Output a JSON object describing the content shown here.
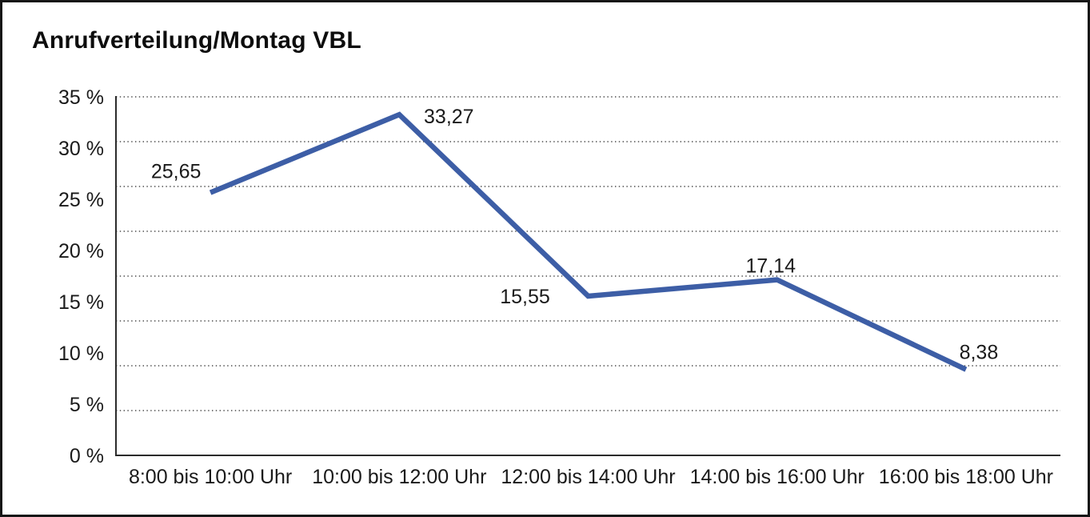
{
  "chart_data": {
    "type": "line",
    "title": "Anrufverteilung/Montag VBL",
    "categories": [
      "8:00 bis 10:00 Uhr",
      "10:00 bis 12:00 Uhr",
      "12:00 bis 14:00 Uhr",
      "14:00 bis 16:00 Uhr",
      "16:00 bis 18:00 Uhr"
    ],
    "series": [
      {
        "name": "Anrufverteilung Montag VBL",
        "values": [
          25.65,
          33.27,
          15.55,
          17.14,
          8.38
        ],
        "point_labels": [
          "25,65",
          "33,27",
          "15,55",
          "17,14",
          "8,38"
        ]
      }
    ],
    "xlabel": "",
    "ylabel": "",
    "y_tick_labels": [
      "35 %",
      "30 %",
      "25 %",
      "20 %",
      "15 %",
      "10 %",
      "5 %",
      "0 %"
    ],
    "ylim": [
      0,
      35
    ],
    "grid": "horizontal-dotted",
    "gridline_intervals": 8,
    "legend": "none",
    "colors": {
      "line": "#3D5EA6",
      "axis": "#2b2b2b",
      "gridline": "#4a4a4a",
      "text": "#1a1a1a",
      "background": "#ffffff",
      "frame_border": "#161616"
    }
  }
}
